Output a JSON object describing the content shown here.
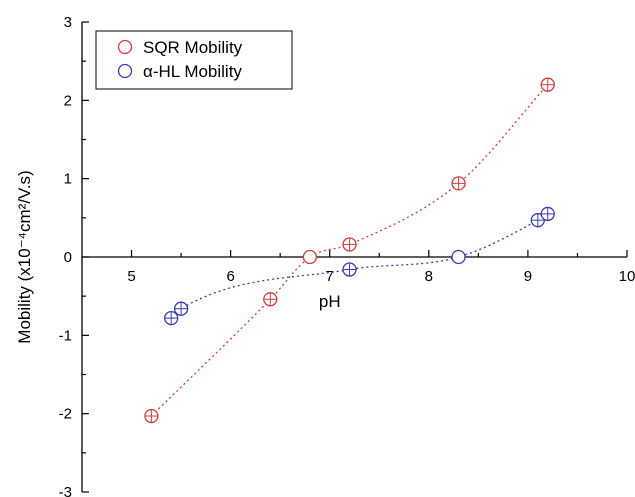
{
  "chart_data": {
    "type": "scatter",
    "xlabel": "pH",
    "ylabel": "Mobility (x10⁻⁴cm²/V.s)",
    "xlim": [
      4.5,
      10
    ],
    "ylim": [
      -3,
      3
    ],
    "x_ticks": [
      "5",
      "6",
      "7",
      "8",
      "9",
      "10"
    ],
    "y_ticks": [
      "3",
      "2",
      "1",
      "0",
      "-1",
      "-2",
      "-3"
    ],
    "grid": false,
    "legend_position": "top-left",
    "series": [
      {
        "name": "SQR Mobility",
        "color": "#d93a3a",
        "marker": "open-circle",
        "x": [
          5.2,
          6.4,
          6.8,
          7.2,
          8.3,
          9.2
        ],
        "y": [
          -2.03,
          -0.54,
          0.0,
          0.16,
          0.94,
          2.2
        ],
        "error_bars": true,
        "fit": "dotted-curve"
      },
      {
        "name": "α-HL Mobility",
        "color": "#3a3ab5",
        "marker": "open-circle",
        "x": [
          5.4,
          5.5,
          7.2,
          8.3,
          9.1,
          9.2
        ],
        "y": [
          -0.78,
          -0.66,
          -0.16,
          0.0,
          0.47,
          0.55
        ],
        "error_bars": true,
        "fit": "dotted-curve"
      }
    ]
  }
}
